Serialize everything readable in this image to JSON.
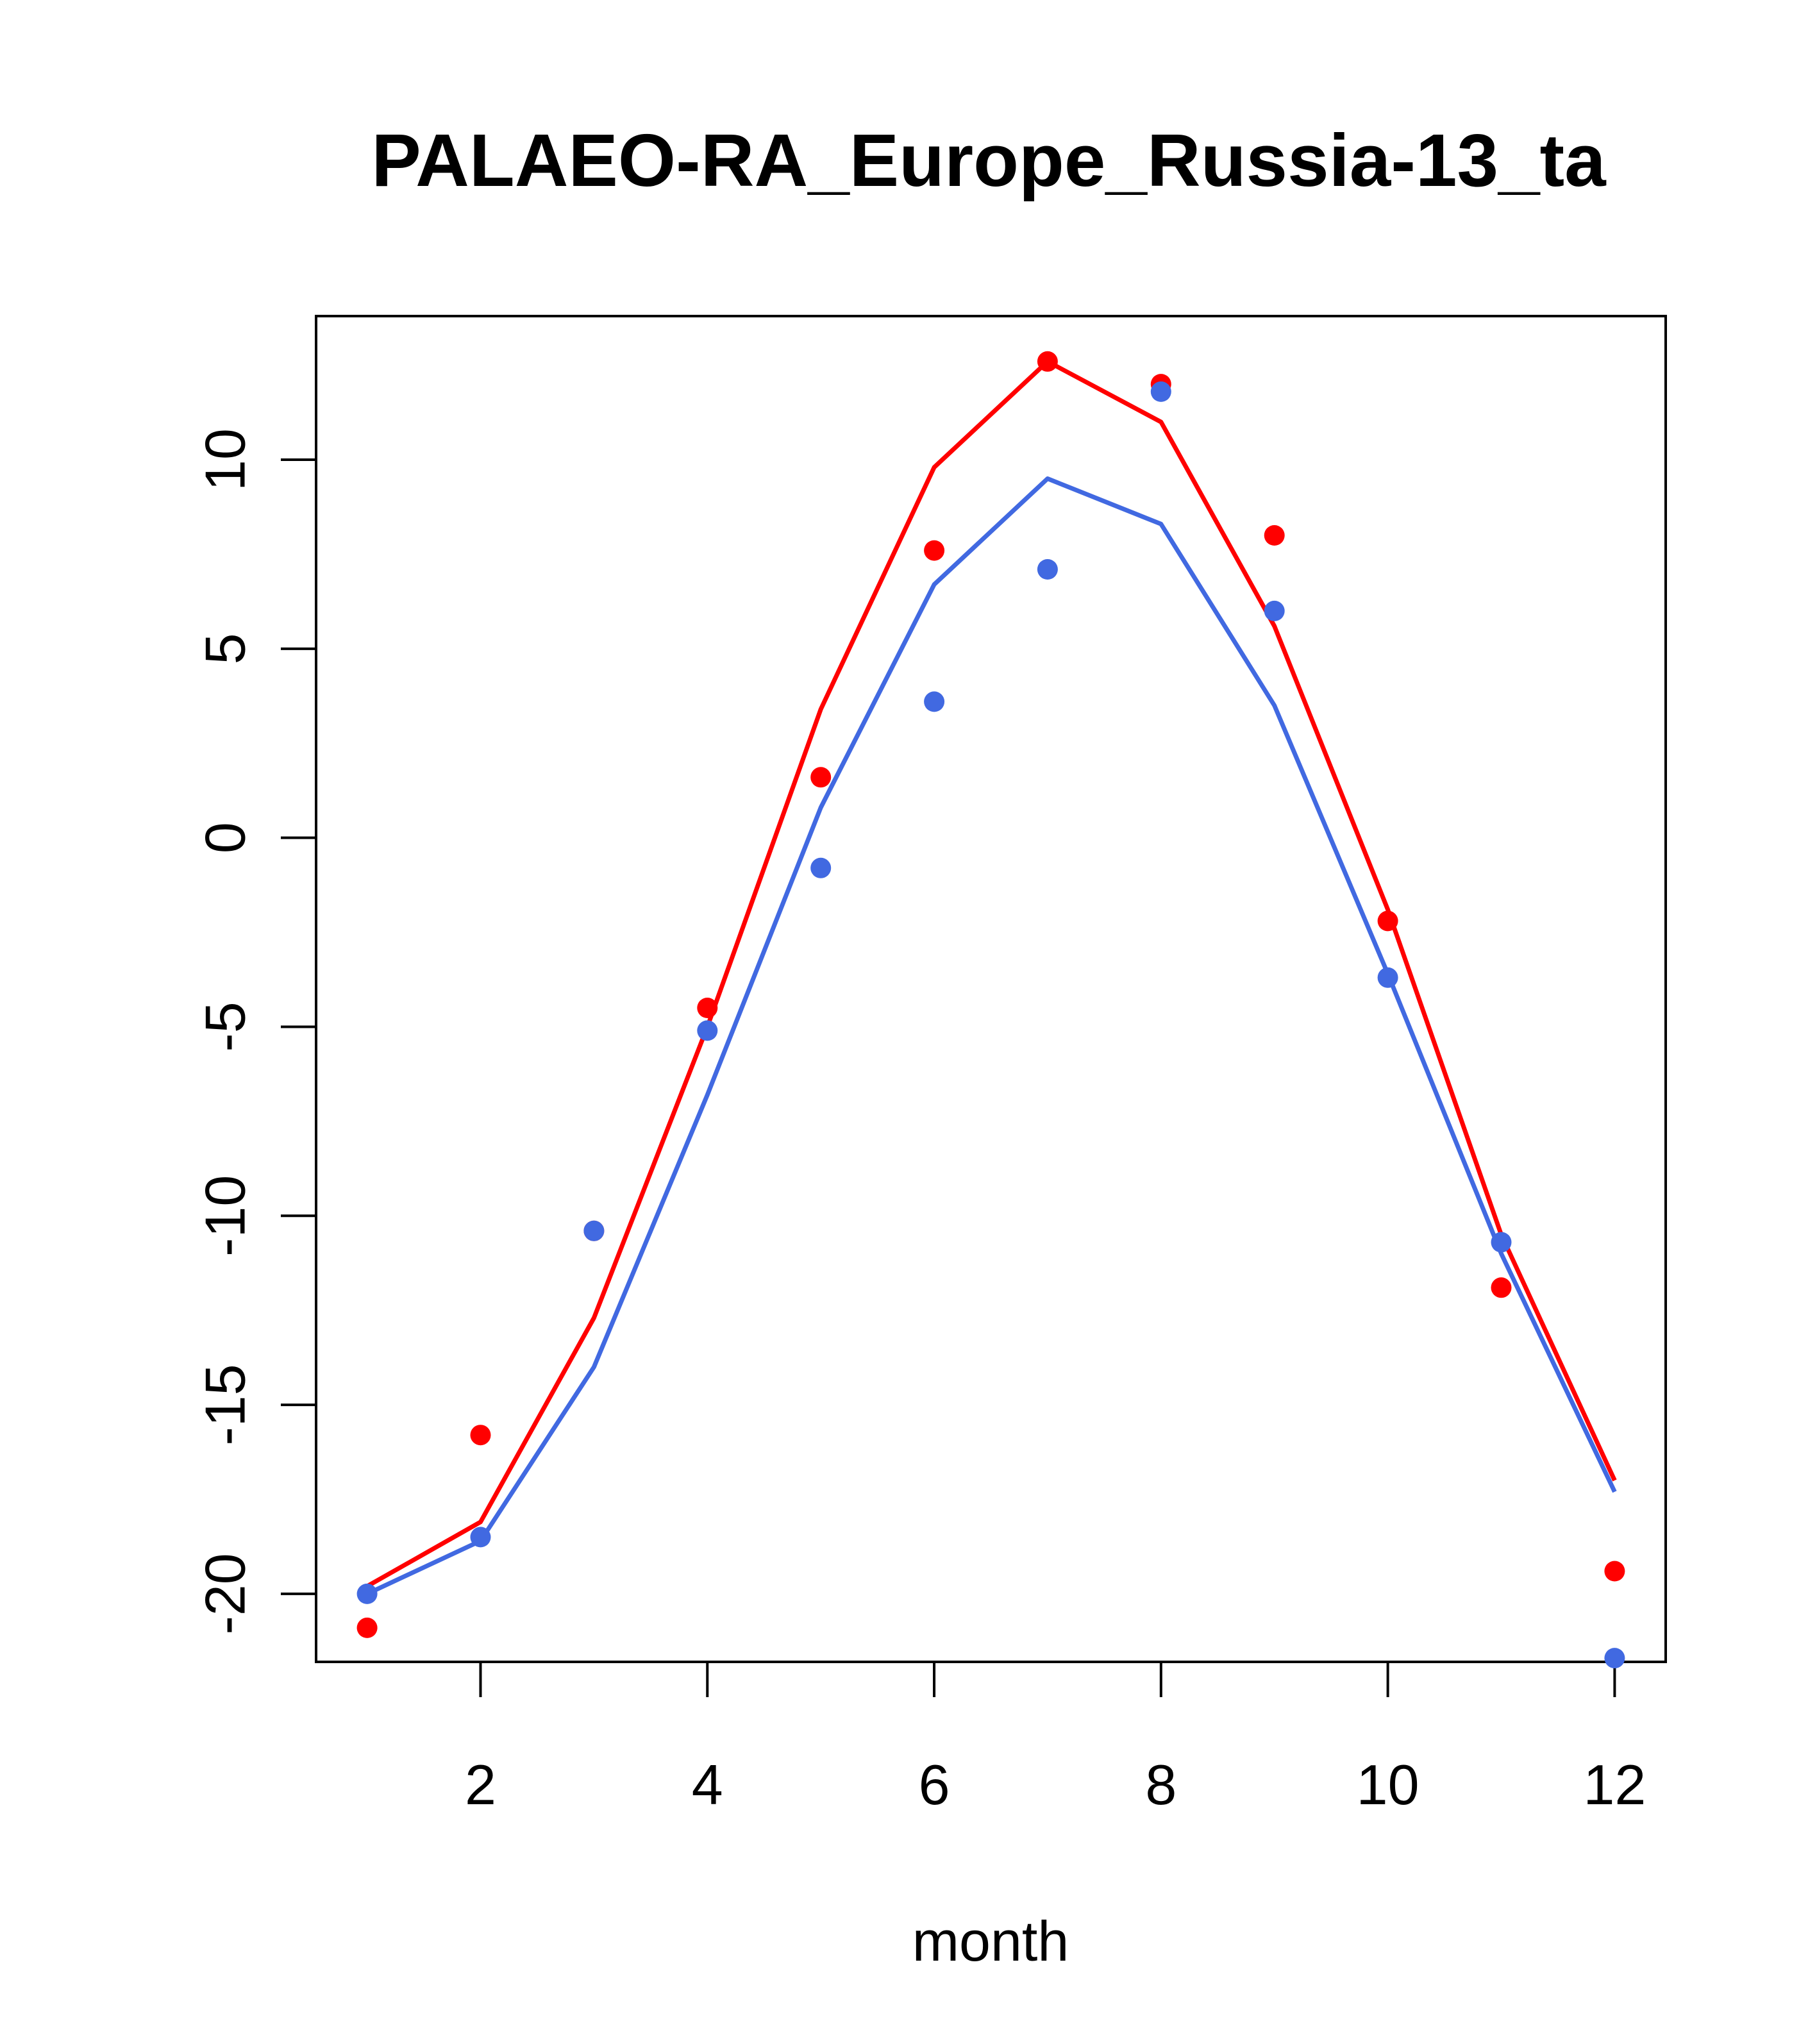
{
  "chart_data": {
    "type": "line",
    "title": "PALAEO-RA_Europe_Russia-13_ta",
    "xlabel": "month",
    "ylabel": "",
    "xlim": [
      0.55,
      12.45
    ],
    "ylim": [
      -21.8,
      13.8
    ],
    "x_ticks": [
      2,
      4,
      6,
      8,
      10,
      12
    ],
    "y_ticks": [
      -20,
      -15,
      -10,
      -5,
      0,
      5,
      10
    ],
    "grid": false,
    "legend": "none",
    "x": [
      1,
      2,
      3,
      4,
      5,
      6,
      7,
      8,
      9,
      10,
      11,
      12
    ],
    "series": [
      {
        "color": "#ff0000",
        "line": [
          -19.8,
          -18.1,
          -12.7,
          -5.0,
          3.4,
          9.8,
          12.6,
          11.0,
          5.6,
          -1.9,
          -10.5,
          -17.0
        ],
        "points": [
          -20.9,
          -15.8,
          -10.4,
          -4.5,
          1.6,
          7.6,
          12.6,
          12.0,
          8.0,
          -2.2,
          -11.9,
          -19.4
        ]
      },
      {
        "color": "#4169e1",
        "line": [
          -20.0,
          -18.6,
          -14.0,
          -6.8,
          0.8,
          6.7,
          9.5,
          8.3,
          3.5,
          -3.6,
          -11.0,
          -17.3
        ],
        "points": [
          -20.0,
          -18.5,
          -10.4,
          -5.1,
          -0.8,
          3.6,
          7.1,
          11.8,
          6.0,
          -3.7,
          -10.7,
          -21.7
        ]
      }
    ]
  }
}
